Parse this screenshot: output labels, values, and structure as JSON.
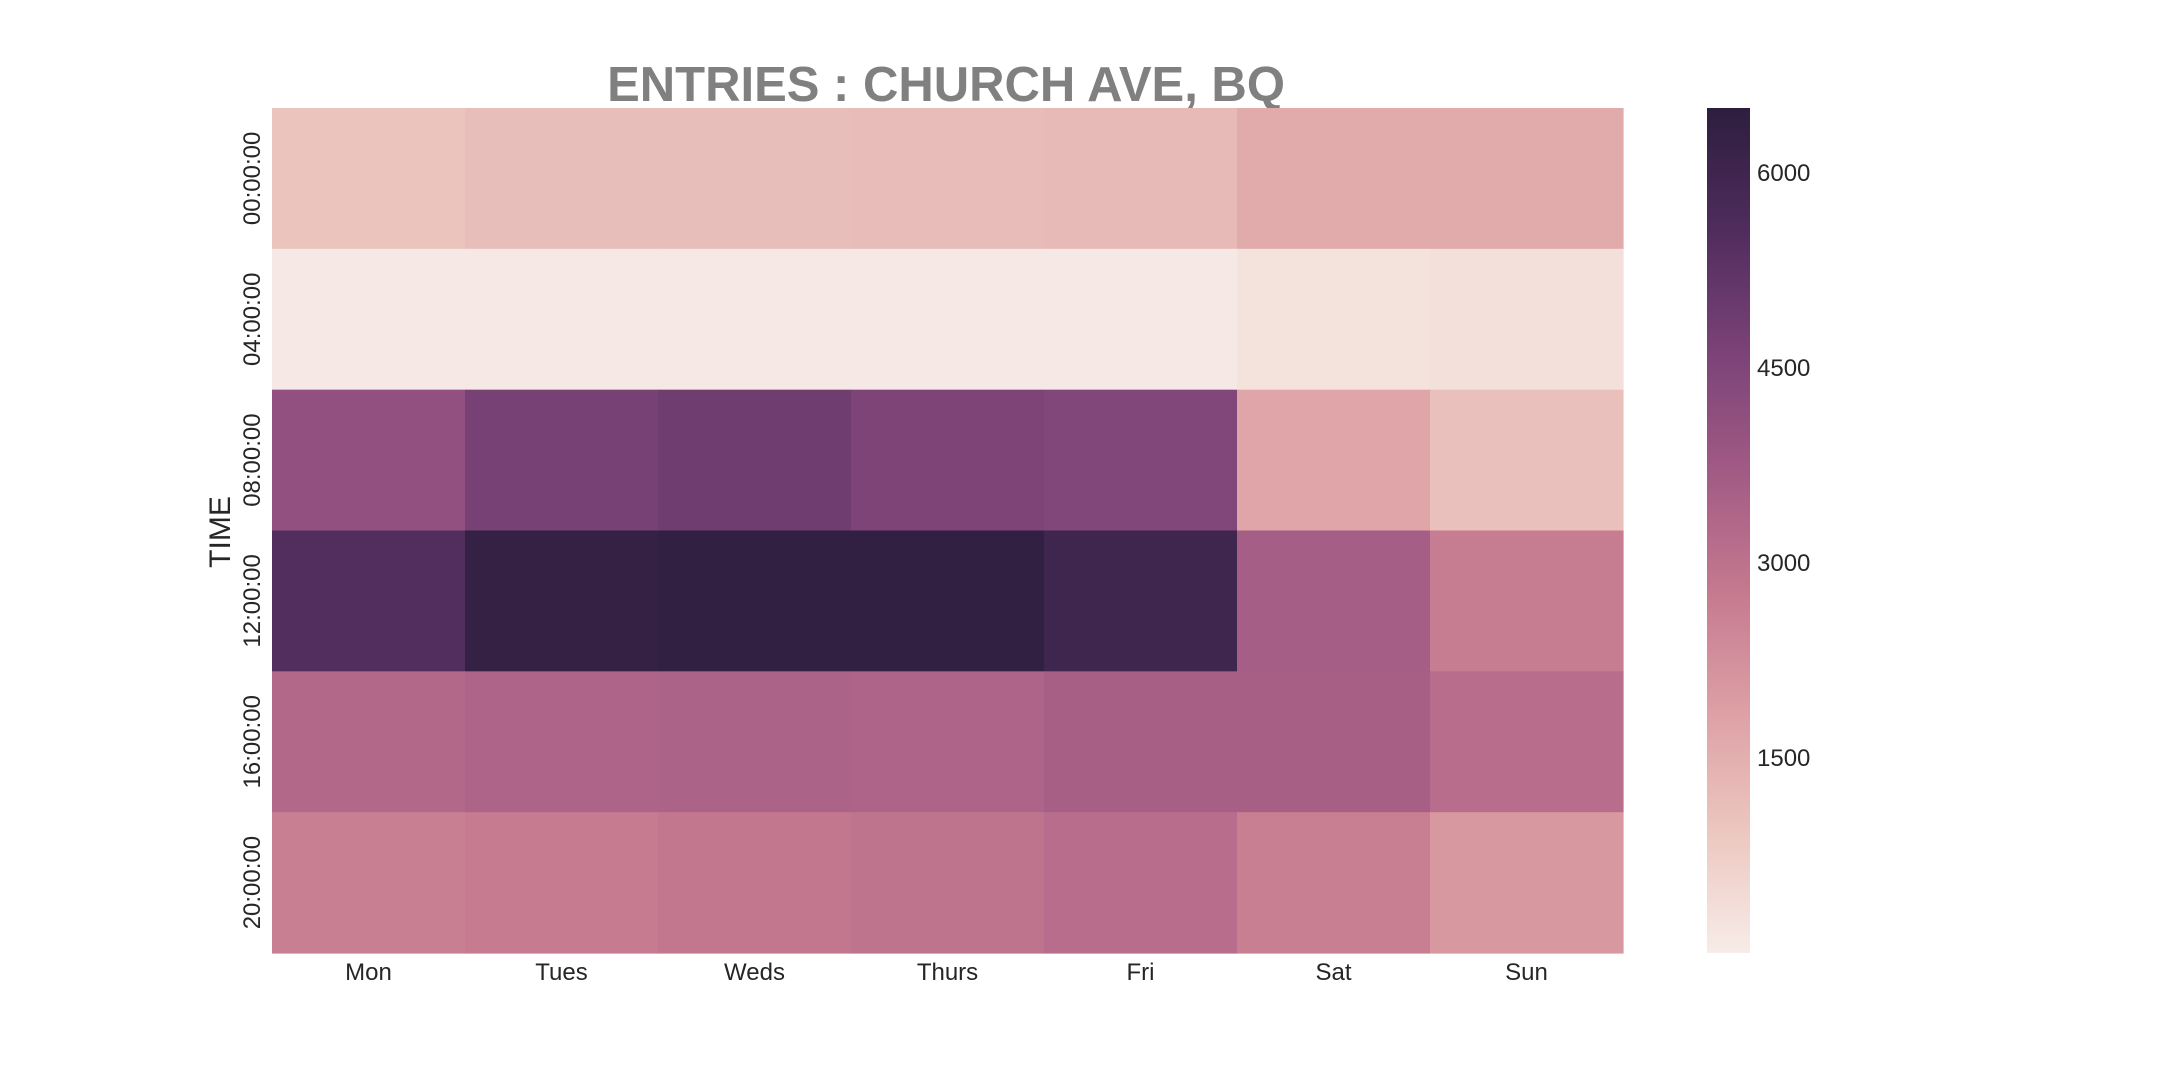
{
  "chart_data": {
    "type": "heatmap",
    "title": "ENTRIES : CHURCH AVE, BQ",
    "xlabel": "",
    "ylabel": "TIME",
    "x_categories": [
      "Mon",
      "Tues",
      "Weds",
      "Thurs",
      "Fri",
      "Sat",
      "Sun"
    ],
    "y_categories": [
      "00:00:00",
      "04:00:00",
      "08:00:00",
      "12:00:00",
      "16:00:00",
      "20:00:00"
    ],
    "values": [
      [
        1000,
        1150,
        1150,
        1200,
        1250,
        1600,
        1600
      ],
      [
        100,
        100,
        100,
        100,
        100,
        250,
        300
      ],
      [
        4100,
        4700,
        4850,
        4550,
        4450,
        1750,
        1100
      ],
      [
        5500,
        6300,
        6400,
        6350,
        6000,
        3600,
        2700
      ],
      [
        3300,
        3400,
        3450,
        3400,
        3550,
        3550,
        3150
      ],
      [
        2650,
        2750,
        2850,
        2950,
        3150,
        2650,
        2050
      ]
    ],
    "colorbar": {
      "min": 0,
      "max": 6500,
      "ticks": [
        "1500",
        "3000",
        "4500",
        "6000"
      ],
      "colors": [
        "#f7ece8",
        "#ecc7c0",
        "#dda0a5",
        "#c5798f",
        "#a15a84",
        "#7a4277",
        "#4f2c5c",
        "#2d1e3e"
      ]
    },
    "grid": false
  }
}
